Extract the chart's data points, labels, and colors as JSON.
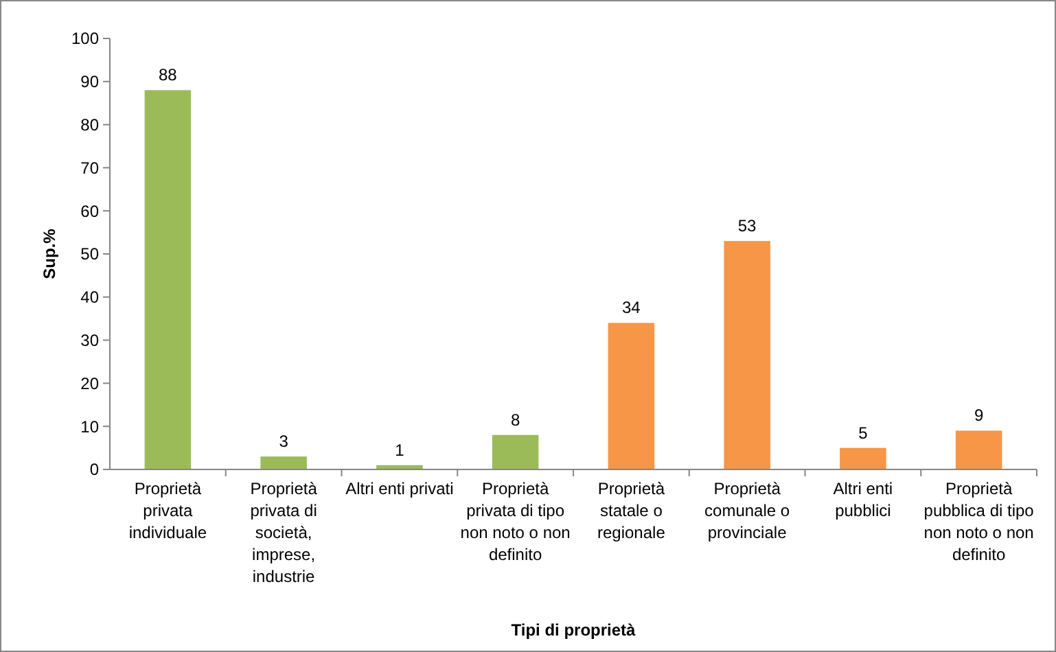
{
  "chart_data": {
    "type": "bar",
    "xlabel": "Tipi di proprietà",
    "ylabel": "Sup.%",
    "categories": [
      "Proprietà privata individuale",
      "Proprietà privata di società, imprese, industrie",
      "Altri enti privati",
      "Proprietà privata di tipo non noto o non definito",
      "Proprietà statale o regionale",
      "Proprietà comunale o provinciale",
      "Altri enti pubblici",
      "Proprietà pubblica di tipo non noto o non definito"
    ],
    "values": [
      88,
      3,
      1,
      8,
      34,
      53,
      5,
      9
    ],
    "colors": [
      "#9bbb59",
      "#9bbb59",
      "#9bbb59",
      "#9bbb59",
      "#f79646",
      "#f79646",
      "#f79646",
      "#f79646"
    ],
    "ylim": [
      0,
      100
    ],
    "yticks": [
      0,
      10,
      20,
      30,
      40,
      50,
      60,
      70,
      80,
      90,
      100
    ],
    "data_labels": true,
    "grid": false
  }
}
